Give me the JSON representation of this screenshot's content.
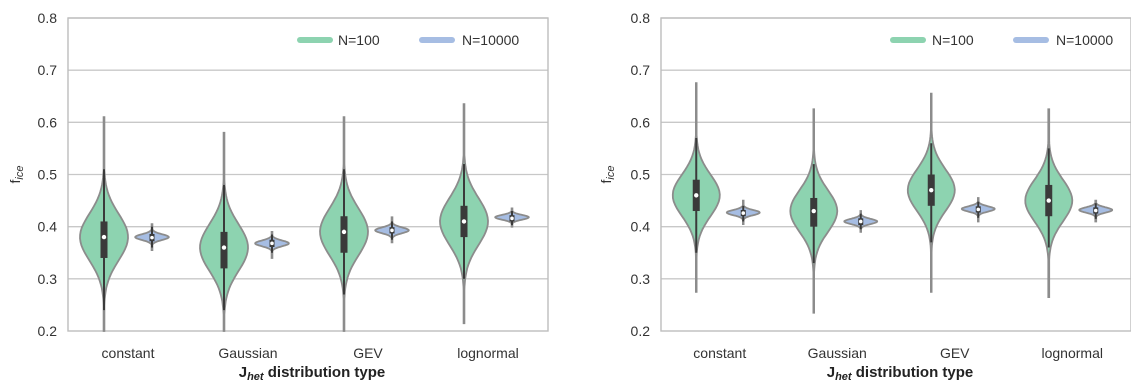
{
  "chart_data": [
    {
      "type": "violin",
      "title": "",
      "xlabel_main": "J",
      "xlabel_sub": "het",
      "xlabel_rest": " distribution type",
      "ylabel_main": "f",
      "ylabel_sub": "ice",
      "ylim": [
        0.2,
        0.8
      ],
      "yticks": [
        "0.2",
        "0.3",
        "0.4",
        "0.5",
        "0.6",
        "0.7",
        "0.8"
      ],
      "categories": [
        "constant",
        "Gaussian",
        "GEV",
        "lognormal"
      ],
      "grid": "horizontal",
      "legend_position": "top-right",
      "series": [
        {
          "name": "N=100",
          "color": "#8dd3b0",
          "violins": [
            {
              "min": 0.2,
              "max": 0.61,
              "q1": 0.34,
              "median": 0.38,
              "q3": 0.41,
              "whisker_low": 0.24,
              "whisker_high": 0.51,
              "peak": 0.38,
              "spread": 0.045
            },
            {
              "min": 0.2,
              "max": 0.58,
              "q1": 0.32,
              "median": 0.36,
              "q3": 0.39,
              "whisker_low": 0.24,
              "whisker_high": 0.48,
              "peak": 0.36,
              "spread": 0.045
            },
            {
              "min": 0.2,
              "max": 0.61,
              "q1": 0.35,
              "median": 0.39,
              "q3": 0.42,
              "whisker_low": 0.27,
              "whisker_high": 0.51,
              "peak": 0.39,
              "spread": 0.045
            },
            {
              "min": 0.215,
              "max": 0.635,
              "q1": 0.38,
              "median": 0.41,
              "q3": 0.44,
              "whisker_low": 0.3,
              "whisker_high": 0.52,
              "peak": 0.41,
              "spread": 0.045
            }
          ]
        },
        {
          "name": "N=10000",
          "color": "#a6bde3",
          "violins": [
            {
              "min": 0.355,
              "max": 0.405,
              "q1": 0.372,
              "median": 0.379,
              "q3": 0.386,
              "whisker_low": 0.36,
              "whisker_high": 0.4,
              "peak": 0.38,
              "spread": 0.0055
            },
            {
              "min": 0.34,
              "max": 0.39,
              "q1": 0.361,
              "median": 0.368,
              "q3": 0.375,
              "whisker_low": 0.35,
              "whisker_high": 0.385,
              "peak": 0.368,
              "spread": 0.0055
            },
            {
              "min": 0.37,
              "max": 0.418,
              "q1": 0.387,
              "median": 0.393,
              "q3": 0.399,
              "whisker_low": 0.375,
              "whisker_high": 0.41,
              "peak": 0.393,
              "spread": 0.0055
            },
            {
              "min": 0.4,
              "max": 0.435,
              "q1": 0.41,
              "median": 0.416,
              "q3": 0.422,
              "whisker_low": 0.403,
              "whisker_high": 0.43,
              "peak": 0.418,
              "spread": 0.0045
            }
          ]
        }
      ]
    },
    {
      "type": "violin",
      "title": "",
      "xlabel_main": "J",
      "xlabel_sub": "het",
      "xlabel_rest": " distribution type",
      "ylabel_main": "f",
      "ylabel_sub": "ice",
      "ylim": [
        0.2,
        0.8
      ],
      "yticks": [
        "0.2",
        "0.3",
        "0.4",
        "0.5",
        "0.6",
        "0.7",
        "0.8"
      ],
      "categories": [
        "constant",
        "Gaussian",
        "GEV",
        "lognormal"
      ],
      "grid": "horizontal",
      "legend_position": "top-right",
      "series": [
        {
          "name": "N=100",
          "color": "#8dd3b0",
          "violins": [
            {
              "min": 0.275,
              "max": 0.675,
              "q1": 0.43,
              "median": 0.46,
              "q3": 0.49,
              "whisker_low": 0.35,
              "whisker_high": 0.57,
              "peak": 0.46,
              "spread": 0.04
            },
            {
              "min": 0.235,
              "max": 0.625,
              "q1": 0.4,
              "median": 0.43,
              "q3": 0.455,
              "whisker_low": 0.33,
              "whisker_high": 0.52,
              "peak": 0.43,
              "spread": 0.04
            },
            {
              "min": 0.275,
              "max": 0.655,
              "q1": 0.44,
              "median": 0.47,
              "q3": 0.5,
              "whisker_low": 0.37,
              "whisker_high": 0.56,
              "peak": 0.47,
              "spread": 0.04
            },
            {
              "min": 0.265,
              "max": 0.625,
              "q1": 0.42,
              "median": 0.45,
              "q3": 0.48,
              "whisker_low": 0.36,
              "whisker_high": 0.55,
              "peak": 0.45,
              "spread": 0.04
            }
          ]
        },
        {
          "name": "N=10000",
          "color": "#a6bde3",
          "violins": [
            {
              "min": 0.405,
              "max": 0.45,
              "q1": 0.42,
              "median": 0.426,
              "q3": 0.432,
              "whisker_low": 0.41,
              "whisker_high": 0.44,
              "peak": 0.427,
              "spread": 0.005
            },
            {
              "min": 0.39,
              "max": 0.43,
              "q1": 0.403,
              "median": 0.41,
              "q3": 0.416,
              "whisker_low": 0.395,
              "whisker_high": 0.425,
              "peak": 0.41,
              "spread": 0.005
            },
            {
              "min": 0.41,
              "max": 0.455,
              "q1": 0.427,
              "median": 0.433,
              "q3": 0.439,
              "whisker_low": 0.417,
              "whisker_high": 0.448,
              "peak": 0.434,
              "spread": 0.005
            },
            {
              "min": 0.41,
              "max": 0.45,
              "q1": 0.425,
              "median": 0.431,
              "q3": 0.437,
              "whisker_low": 0.415,
              "whisker_high": 0.445,
              "peak": 0.432,
              "spread": 0.005
            }
          ]
        }
      ]
    }
  ]
}
